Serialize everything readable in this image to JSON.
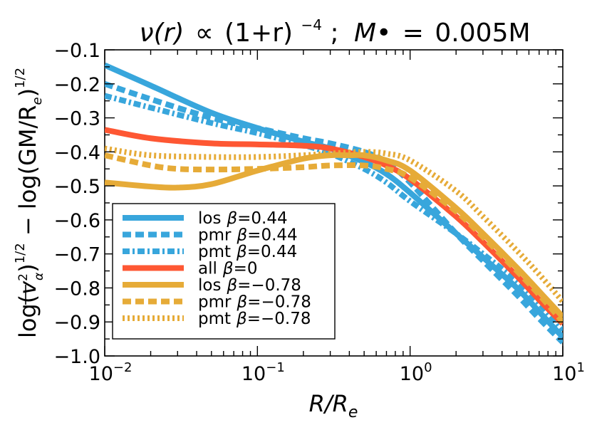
{
  "chart_data": {
    "type": "line",
    "title": "ν(r) ∝ (1+r)⁻⁴; M• = 0.005M",
    "title_parts": {
      "lhs": "ν(r)",
      "propto": "∝",
      "base": "(1+r)",
      "exponent": "−4",
      "sep": ";",
      "mass": "M•",
      "equals": "=",
      "value": "0.005M"
    },
    "xlabel": "R/Rₑ",
    "xlabel_parts": {
      "main": "R/R",
      "sub": "e"
    },
    "ylabel": "log(⟨v²α⟩)^1/2 − log(GM/Rₑ)^1/2",
    "ylabel_parts": {
      "first": "log(",
      "v": "v",
      "v_sup": "2",
      "v_sub": "α",
      "mid": ")",
      "pow1": "1/2",
      "second": " − log(GM/R",
      "second_sub": "e",
      "close": ")",
      "pow2": "1/2"
    },
    "xscale": "log",
    "xlim": [
      0.01,
      10
    ],
    "ylim": [
      -1.0,
      -0.1
    ],
    "x_ticks": [
      {
        "value": 0.01,
        "base": "10",
        "exp": "−2"
      },
      {
        "value": 0.1,
        "base": "10",
        "exp": "−1"
      },
      {
        "value": 1,
        "base": "10",
        "exp": "0"
      },
      {
        "value": 10,
        "base": "10",
        "exp": "1"
      }
    ],
    "y_ticks": [
      {
        "value": -0.1,
        "label": "−0.1"
      },
      {
        "value": -0.2,
        "label": "−0.2"
      },
      {
        "value": -0.3,
        "label": "−0.3"
      },
      {
        "value": -0.4,
        "label": "−0.4"
      },
      {
        "value": -0.5,
        "label": "−0.5"
      },
      {
        "value": -0.6,
        "label": "−0.6"
      },
      {
        "value": -0.7,
        "label": "−0.7"
      },
      {
        "value": -0.8,
        "label": "−0.8"
      },
      {
        "value": -0.9,
        "label": "−0.9"
      },
      {
        "value": -1.0,
        "label": "−1.0"
      }
    ],
    "grid": false,
    "legend_position": "lower-left",
    "series": [
      {
        "name": "los β=0.44",
        "label": "los",
        "beta": "0.44",
        "color": "#38a6dc",
        "style": "solid",
        "x": [
          0.01,
          0.02,
          0.05,
          0.1,
          0.2,
          0.3,
          0.5,
          0.7,
          1,
          2,
          3,
          5,
          7,
          10
        ],
        "y": [
          -0.145,
          -0.205,
          -0.285,
          -0.33,
          -0.37,
          -0.39,
          -0.43,
          -0.465,
          -0.52,
          -0.64,
          -0.71,
          -0.8,
          -0.87,
          -0.945
        ]
      },
      {
        "name": "pmr β=0.44",
        "label": "pmr",
        "beta": "0.44",
        "color": "#38a6dc",
        "style": "dashed",
        "x": [
          0.01,
          0.02,
          0.05,
          0.1,
          0.2,
          0.3,
          0.5,
          0.7,
          1,
          2,
          3,
          5,
          7,
          10
        ],
        "y": [
          -0.2,
          -0.245,
          -0.3,
          -0.33,
          -0.36,
          -0.375,
          -0.4,
          -0.43,
          -0.49,
          -0.64,
          -0.72,
          -0.82,
          -0.89,
          -0.96
        ]
      },
      {
        "name": "pmt β=0.44",
        "label": "pmt",
        "beta": "0.44",
        "color": "#38a6dc",
        "style": "dashdot",
        "x": [
          0.01,
          0.02,
          0.05,
          0.1,
          0.2,
          0.3,
          0.5,
          0.7,
          1,
          2,
          3,
          5,
          7,
          10
        ],
        "y": [
          -0.235,
          -0.27,
          -0.315,
          -0.345,
          -0.38,
          -0.405,
          -0.45,
          -0.49,
          -0.545,
          -0.64,
          -0.7,
          -0.78,
          -0.845,
          -0.925
        ]
      },
      {
        "name": "all β=0",
        "label": "all",
        "beta": "0",
        "color": "#fe5733",
        "style": "solid",
        "x": [
          0.01,
          0.02,
          0.05,
          0.1,
          0.2,
          0.3,
          0.5,
          0.7,
          1,
          2,
          3,
          5,
          7,
          10
        ],
        "y": [
          -0.335,
          -0.36,
          -0.375,
          -0.378,
          -0.382,
          -0.39,
          -0.415,
          -0.44,
          -0.48,
          -0.59,
          -0.665,
          -0.765,
          -0.835,
          -0.905
        ]
      },
      {
        "name": "los β=−0.78",
        "label": "los",
        "beta": "−0.78",
        "color": "#e6ab38",
        "style": "solid",
        "x": [
          0.01,
          0.02,
          0.03,
          0.05,
          0.1,
          0.2,
          0.3,
          0.4,
          0.5,
          0.7,
          1,
          2,
          3,
          5,
          7,
          10
        ],
        "y": [
          -0.49,
          -0.502,
          -0.505,
          -0.495,
          -0.455,
          -0.42,
          -0.41,
          -0.41,
          -0.41,
          -0.425,
          -0.455,
          -0.565,
          -0.64,
          -0.74,
          -0.81,
          -0.885
        ]
      },
      {
        "name": "pmr β=−0.78",
        "label": "pmr",
        "beta": "−0.78",
        "color": "#e6ab38",
        "style": "dashed",
        "x": [
          0.01,
          0.02,
          0.03,
          0.05,
          0.1,
          0.2,
          0.3,
          0.5,
          0.7,
          1,
          2,
          3,
          5,
          7,
          10
        ],
        "y": [
          -0.41,
          -0.44,
          -0.45,
          -0.452,
          -0.45,
          -0.445,
          -0.44,
          -0.44,
          -0.45,
          -0.475,
          -0.575,
          -0.65,
          -0.75,
          -0.82,
          -0.9
        ]
      },
      {
        "name": "pmt β=−0.78",
        "label": "pmt",
        "beta": "−0.78",
        "color": "#e6ab38",
        "style": "dotted",
        "x": [
          0.01,
          0.02,
          0.05,
          0.1,
          0.2,
          0.3,
          0.5,
          0.7,
          1,
          2,
          3,
          5,
          7,
          10
        ],
        "y": [
          -0.39,
          -0.41,
          -0.415,
          -0.415,
          -0.41,
          -0.405,
          -0.4,
          -0.405,
          -0.425,
          -0.515,
          -0.59,
          -0.69,
          -0.76,
          -0.84
        ]
      }
    ]
  }
}
